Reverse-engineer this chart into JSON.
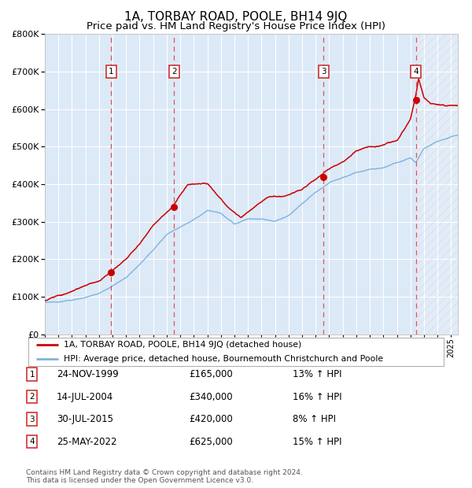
{
  "title": "1A, TORBAY ROAD, POOLE, BH14 9JQ",
  "subtitle": "Price paid vs. HM Land Registry's House Price Index (HPI)",
  "title_fontsize": 11,
  "subtitle_fontsize": 9.5,
  "background_color": "#ffffff",
  "plot_bg_color": "#dce9f7",
  "grid_color": "#ffffff",
  "ylim": [
    0,
    800000
  ],
  "yticks": [
    0,
    100000,
    200000,
    300000,
    400000,
    500000,
    600000,
    700000,
    800000
  ],
  "xmin": 1995.0,
  "xmax": 2025.5,
  "sales": [
    {
      "num": 1,
      "date": "24-NOV-1999",
      "year": 1999.9,
      "price": 165000
    },
    {
      "num": 2,
      "date": "14-JUL-2004",
      "year": 2004.54,
      "price": 340000
    },
    {
      "num": 3,
      "date": "30-JUL-2015",
      "year": 2015.58,
      "price": 420000
    },
    {
      "num": 4,
      "date": "25-MAY-2022",
      "year": 2022.4,
      "price": 625000
    }
  ],
  "red_line_color": "#cc0000",
  "blue_line_color": "#7fb3e0",
  "sale_dot_color": "#cc0000",
  "dashed_line_color": "#dd4444",
  "legend_entries": [
    "1A, TORBAY ROAD, POOLE, BH14 9JQ (detached house)",
    "HPI: Average price, detached house, Bournemouth Christchurch and Poole"
  ],
  "footer_text": "Contains HM Land Registry data © Crown copyright and database right 2024.\nThis data is licensed under the Open Government Licence v3.0.",
  "table_rows": [
    {
      "num": 1,
      "date": "24-NOV-1999",
      "price": "£165,000",
      "hpi": "13% ↑ HPI"
    },
    {
      "num": 2,
      "date": "14-JUL-2004",
      "price": "£340,000",
      "hpi": "16% ↑ HPI"
    },
    {
      "num": 3,
      "date": "30-JUL-2015",
      "price": "£420,000",
      "hpi": "8% ↑ HPI"
    },
    {
      "num": 4,
      "date": "25-MAY-2022",
      "price": "£625,000",
      "hpi": "15% ↑ HPI"
    }
  ]
}
